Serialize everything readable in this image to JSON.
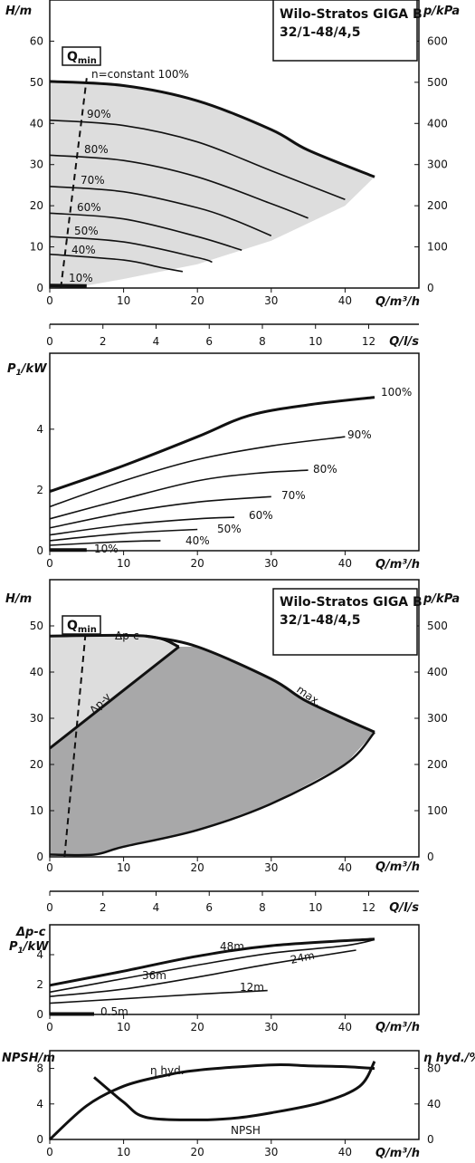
{
  "colors": {
    "light_fill": "#dddddd",
    "dark_fill": "#a8a8a9",
    "line": "#111111"
  },
  "chart_data": [
    {
      "type": "line",
      "title": "Wilo-Stratos GIGA B\n32/1-48/4,5",
      "xlabel": "Q/m³/h",
      "ylabel": "H/m",
      "ylabel_right": "p/kPa",
      "qmin_label": "Q",
      "qmin_sub": "min",
      "xlim": [
        0,
        50
      ],
      "ylim": [
        0,
        70
      ],
      "x_ticks": [
        "0",
        "10",
        "20",
        "30",
        "40"
      ],
      "y_ticks": [
        "0",
        "10",
        "20",
        "30",
        "40",
        "50",
        "60"
      ],
      "y_right_ticks": [
        "0",
        "100",
        "200",
        "300",
        "400",
        "500",
        "600"
      ],
      "series": [
        {
          "name": "n=constant 100%",
          "points": [
            [
              0,
              50.2
            ],
            [
              10,
              49.2
            ],
            [
              20,
              45.5
            ],
            [
              30,
              38.5
            ],
            [
              35,
              33.5
            ],
            [
              44,
              27
            ]
          ]
        },
        {
          "name": "90%",
          "points": [
            [
              0,
              40.8
            ],
            [
              10,
              39.5
            ],
            [
              20,
              35.5
            ],
            [
              30,
              28.5
            ],
            [
              40,
              21.5
            ]
          ]
        },
        {
          "name": "80%",
          "points": [
            [
              0,
              32.3
            ],
            [
              10,
              31
            ],
            [
              20,
              27
            ],
            [
              30,
              20.5
            ],
            [
              35,
              17
            ]
          ]
        },
        {
          "name": "70%",
          "points": [
            [
              0,
              24.7
            ],
            [
              10,
              23.4
            ],
            [
              20,
              19.5
            ],
            [
              25,
              16.5
            ],
            [
              30,
              12.7
            ]
          ]
        },
        {
          "name": "60%",
          "points": [
            [
              0,
              18.2
            ],
            [
              10,
              16.8
            ],
            [
              20,
              12.5
            ],
            [
              26,
              9.2
            ]
          ]
        },
        {
          "name": "50%",
          "points": [
            [
              0,
              12.5
            ],
            [
              10,
              11.2
            ],
            [
              20,
              7.4
            ],
            [
              22,
              6.3
            ]
          ]
        },
        {
          "name": "40%",
          "points": [
            [
              0,
              8.2
            ],
            [
              10,
              6.8
            ],
            [
              15,
              5
            ],
            [
              18,
              4
            ]
          ]
        },
        {
          "name": "10%",
          "points": [
            [
              0,
              0.6
            ],
            [
              5,
              0.5
            ]
          ]
        }
      ],
      "operating_range": [
        [
          0,
          50.2
        ],
        [
          10,
          49.2
        ],
        [
          20,
          45.5
        ],
        [
          30,
          38.5
        ],
        [
          35,
          33.5
        ],
        [
          44,
          27
        ],
        [
          40,
          20
        ],
        [
          30,
          11.5
        ],
        [
          20,
          5.8
        ],
        [
          10,
          2.2
        ],
        [
          5,
          0.6
        ],
        [
          0,
          0.5
        ]
      ],
      "qmin_line": [
        [
          1.5,
          0
        ],
        [
          5,
          51
        ]
      ]
    },
    {
      "type": "line",
      "xlabel": "Q/l/s",
      "xlim": [
        0,
        13
      ],
      "x_ticks": [
        "0",
        "2",
        "4",
        "6",
        "8",
        "10",
        "12"
      ]
    },
    {
      "type": "line",
      "xlabel": "Q/m³/h",
      "ylabel": "P1/kW",
      "ylabel_main": "P",
      "ylabel_sub": "1",
      "ylabel_unit": "/kW",
      "xlim": [
        0,
        50
      ],
      "ylim": [
        0,
        6
      ],
      "x_ticks": [
        "0",
        "10",
        "20",
        "30",
        "40"
      ],
      "y_ticks": [
        "0",
        "2",
        "4"
      ],
      "series": [
        {
          "name": "100%",
          "points": [
            [
              0,
              1.95
            ],
            [
              10,
              2.8
            ],
            [
              20,
              3.75
            ],
            [
              27,
              4.45
            ],
            [
              35,
              4.8
            ],
            [
              44,
              5.05
            ]
          ]
        },
        {
          "name": "90%",
          "points": [
            [
              0,
              1.45
            ],
            [
              10,
              2.3
            ],
            [
              20,
              3
            ],
            [
              30,
              3.45
            ],
            [
              40,
              3.75
            ]
          ]
        },
        {
          "name": "80%",
          "points": [
            [
              0,
              1.05
            ],
            [
              10,
              1.7
            ],
            [
              20,
              2.3
            ],
            [
              28,
              2.55
            ],
            [
              35,
              2.65
            ]
          ]
        },
        {
          "name": "70%",
          "points": [
            [
              0,
              0.75
            ],
            [
              10,
              1.25
            ],
            [
              20,
              1.6
            ],
            [
              30,
              1.78
            ]
          ]
        },
        {
          "name": "60%",
          "points": [
            [
              0,
              0.52
            ],
            [
              10,
              0.85
            ],
            [
              20,
              1.05
            ],
            [
              25,
              1.1
            ]
          ]
        },
        {
          "name": "50%",
          "points": [
            [
              0,
              0.33
            ],
            [
              10,
              0.57
            ],
            [
              20,
              0.7
            ]
          ]
        },
        {
          "name": "40%",
          "points": [
            [
              0,
              0.18
            ],
            [
              10,
              0.3
            ],
            [
              15,
              0.33
            ]
          ]
        },
        {
          "name": "10%",
          "points": [
            [
              0,
              0.02
            ],
            [
              5,
              0.02
            ]
          ]
        }
      ]
    },
    {
      "type": "line",
      "title": "Wilo-Stratos GIGA B\n32/1-48/4,5",
      "xlabel": "Q/m³/h",
      "ylabel": "H/m",
      "ylabel_right": "p/kPa",
      "qmin_label": "Q",
      "qmin_sub": "min",
      "xlim": [
        0,
        50
      ],
      "ylim": [
        0,
        60
      ],
      "x_ticks": [
        "0",
        "10",
        "20",
        "30",
        "40"
      ],
      "y_ticks": [
        "0",
        "10",
        "20",
        "30",
        "40",
        "50"
      ],
      "y_right_ticks": [
        "0",
        "100",
        "200",
        "300",
        "400",
        "500"
      ],
      "series": [
        {
          "name": "Δp-c",
          "points": [
            [
              0,
              47.8
            ],
            [
              13,
              47.8
            ],
            [
              17.5,
              45.5
            ]
          ]
        },
        {
          "name": "Δp-v",
          "points": [
            [
              0,
              23.5
            ],
            [
              17.5,
              45.5
            ]
          ]
        },
        {
          "name": "max.",
          "points": [
            [
              13,
              47.8
            ],
            [
              20,
              45.5
            ],
            [
              30,
              38.5
            ],
            [
              35,
              33.5
            ],
            [
              44,
              27
            ]
          ]
        }
      ],
      "area_light": [
        [
          0,
          47.8
        ],
        [
          13,
          47.8
        ],
        [
          17.5,
          45.5
        ],
        [
          0,
          23.5
        ]
      ],
      "area_dark": [
        [
          0,
          23.5
        ],
        [
          17.5,
          45.5
        ],
        [
          20,
          45.5
        ],
        [
          30,
          38.5
        ],
        [
          35,
          33.5
        ],
        [
          44,
          27
        ],
        [
          40,
          20
        ],
        [
          30,
          11.5
        ],
        [
          20,
          5.8
        ],
        [
          10,
          2.2
        ],
        [
          6,
          0.5
        ],
        [
          0,
          0.5
        ]
      ],
      "qmin_line": [
        [
          2,
          0
        ],
        [
          5,
          51
        ]
      ]
    },
    {
      "type": "line",
      "xlabel": "Q/l/s",
      "xlim": [
        0,
        13
      ],
      "x_ticks": [
        "0",
        "2",
        "4",
        "6",
        "8",
        "10",
        "12"
      ]
    },
    {
      "type": "line",
      "xlabel": "Q/m³/h",
      "ylabel_top": "Δp-c",
      "ylabel_main": "P",
      "ylabel_sub": "1",
      "ylabel_unit": "/kW",
      "xlim": [
        0,
        50
      ],
      "ylim": [
        0,
        6
      ],
      "x_ticks": [
        "0",
        "10",
        "20",
        "30",
        "40"
      ],
      "y_ticks": [
        "0",
        "2",
        "4"
      ],
      "series": [
        {
          "name": "48m",
          "points": [
            [
              0,
              1.95
            ],
            [
              10,
              2.9
            ],
            [
              20,
              3.9
            ],
            [
              30,
              4.6
            ],
            [
              44,
              5.05
            ]
          ]
        },
        {
          "name": "36m",
          "points": [
            [
              0,
              1.5
            ],
            [
              10,
              2.4
            ],
            [
              20,
              3.3
            ],
            [
              30,
              4.1
            ],
            [
              40,
              4.6
            ],
            [
              44,
              5
            ]
          ]
        },
        {
          "name": "24m",
          "points": [
            [
              0,
              1.2
            ],
            [
              10,
              1.7
            ],
            [
              20,
              2.5
            ],
            [
              30,
              3.4
            ],
            [
              41.5,
              4.3
            ]
          ]
        },
        {
          "name": "12m",
          "points": [
            [
              0,
              0.75
            ],
            [
              10,
              1.05
            ],
            [
              20,
              1.35
            ],
            [
              29.5,
              1.6
            ]
          ]
        },
        {
          "name": "0.5m",
          "points": [
            [
              0,
              0.03
            ],
            [
              6,
              0.03
            ]
          ]
        }
      ]
    },
    {
      "type": "line",
      "xlabel": "Q/m³/h",
      "ylabel": "NPSH/m",
      "ylabel_right": "η hyd./%",
      "xlim": [
        0,
        50
      ],
      "ylim": [
        0,
        10
      ],
      "x_ticks": [
        "0",
        "10",
        "20",
        "30",
        "40"
      ],
      "y_ticks": [
        "0",
        "4",
        "8"
      ],
      "y_right_ticks": [
        "0",
        "40",
        "80"
      ],
      "series": [
        {
          "name": "η hyd.",
          "points": [
            [
              0,
              0
            ],
            [
              5,
              3.8
            ],
            [
              10,
              6
            ],
            [
              15,
              7.1
            ],
            [
              20,
              7.8
            ],
            [
              30,
              8.4
            ],
            [
              35,
              8.3
            ],
            [
              40,
              8.2
            ],
            [
              44,
              8
            ]
          ]
        },
        {
          "name": "NPSH",
          "points": [
            [
              6,
              7
            ],
            [
              10,
              4.2
            ],
            [
              13,
              2.5
            ],
            [
              20,
              2.2
            ],
            [
              25,
              2.4
            ],
            [
              30,
              3
            ],
            [
              37,
              4.2
            ],
            [
              42,
              6
            ],
            [
              44,
              8.8
            ]
          ]
        }
      ]
    }
  ]
}
